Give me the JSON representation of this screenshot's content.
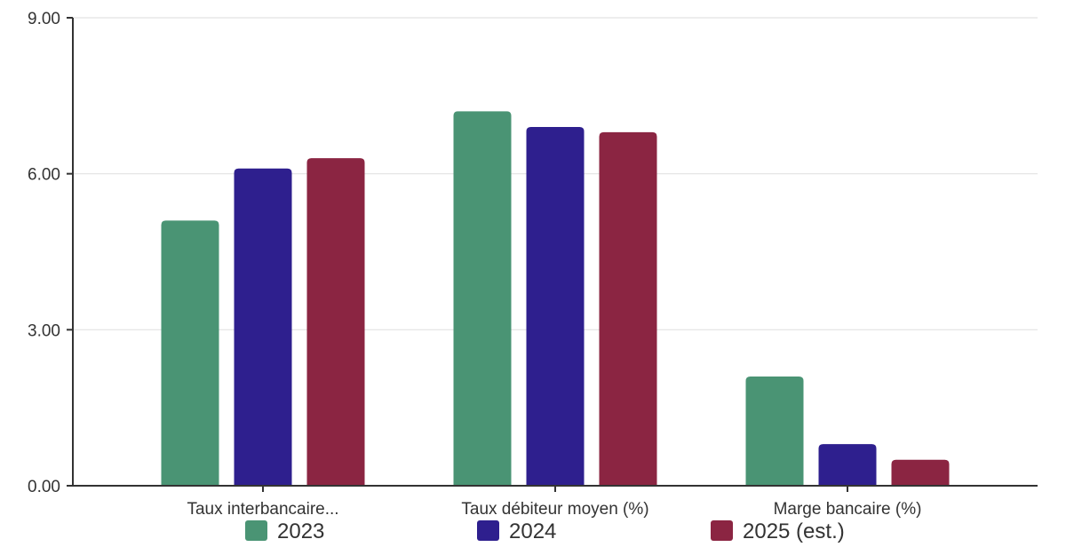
{
  "chart_data": {
    "type": "bar",
    "categories": [
      "Taux interbancaire...",
      "Taux débiteur moyen (%)",
      "Marge bancaire (%)"
    ],
    "series": [
      {
        "name": "2023",
        "values": [
          5.1,
          7.2,
          2.1
        ],
        "color": "#4a9474"
      },
      {
        "name": "2024",
        "values": [
          6.1,
          6.9,
          0.8
        ],
        "color": "#2e1f8e"
      },
      {
        "name": "2025 (est.)",
        "values": [
          6.3,
          6.8,
          0.5
        ],
        "color": "#8b2542"
      }
    ],
    "yticks": [
      "0.00",
      "3.00",
      "6.00",
      "9.00"
    ],
    "ytick_values": [
      0,
      3,
      6,
      9
    ],
    "ylim": [
      0,
      9
    ],
    "title": "",
    "xlabel": "",
    "ylabel": "",
    "grid": true,
    "legend_position": "bottom"
  }
}
